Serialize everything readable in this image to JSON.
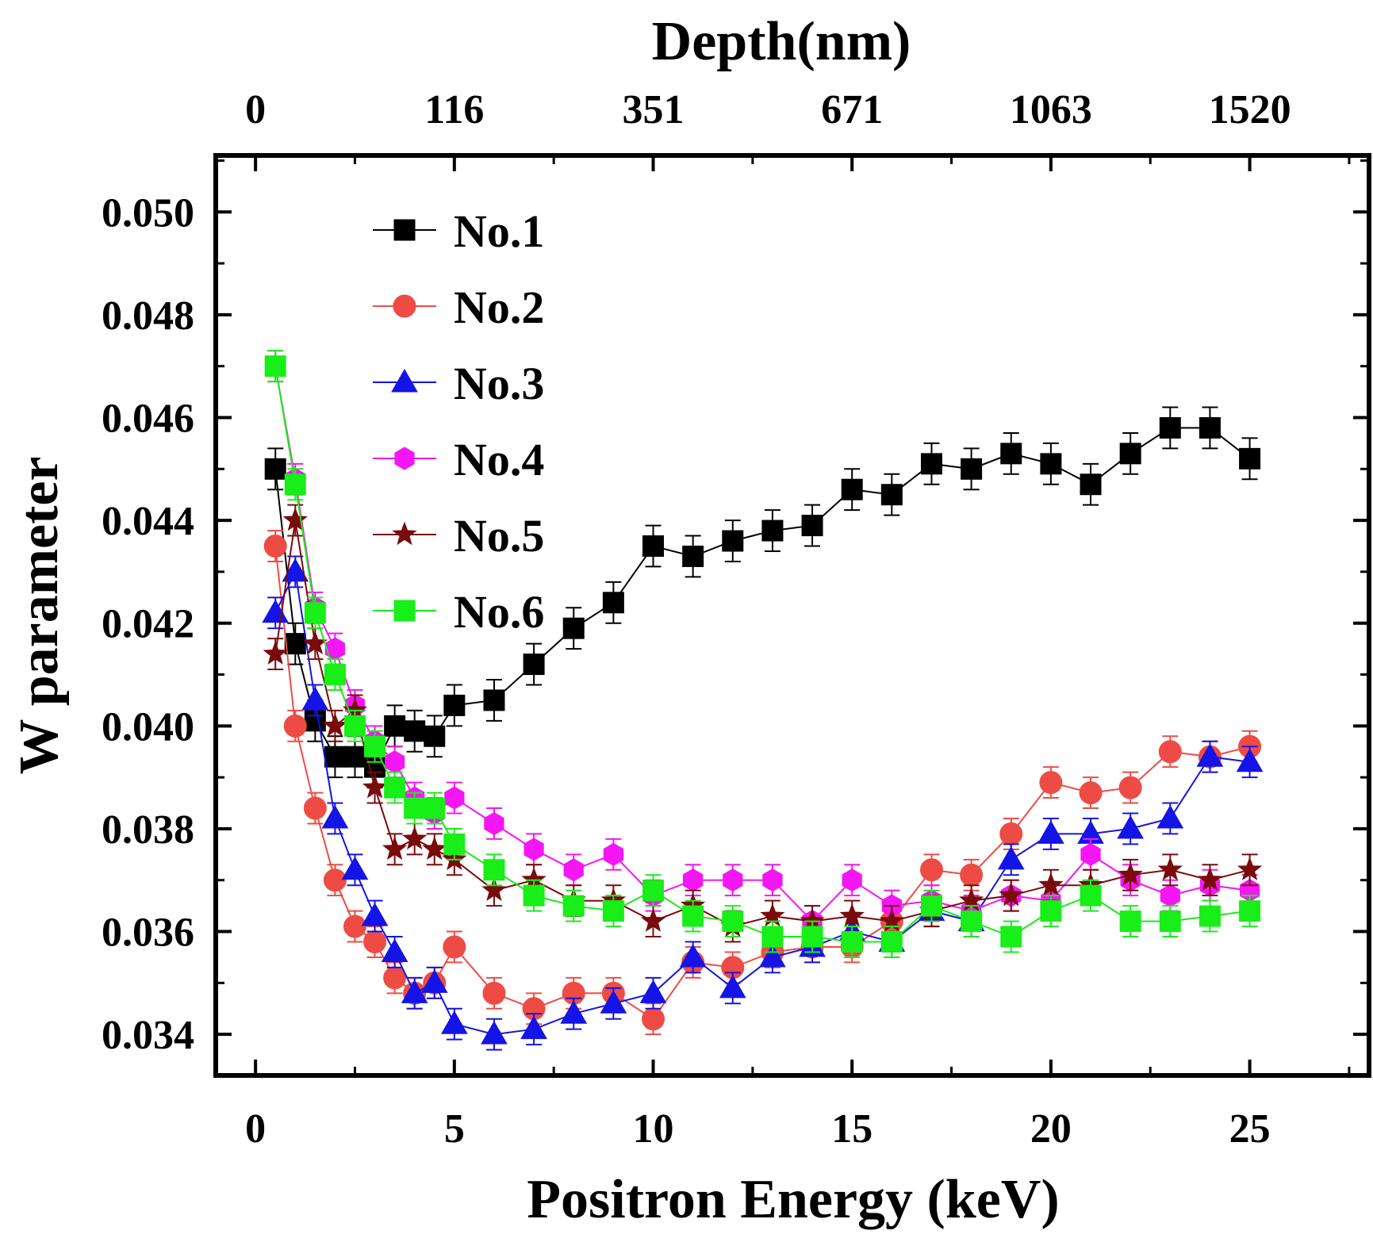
{
  "chart_data": {
    "type": "scatter",
    "title": "",
    "xlabel": "Positron Energy (keV)",
    "ylabel": "W parameter",
    "top_axis_label": "Depth(nm)",
    "xlim": [
      -1,
      28
    ],
    "ylim": [
      0.0332,
      0.0511
    ],
    "x_ticks": [
      0,
      5,
      10,
      15,
      20,
      25
    ],
    "x_tick_labels": [
      "0",
      "5",
      "10",
      "15",
      "20",
      "25"
    ],
    "y_ticks": [
      0.034,
      0.036,
      0.038,
      0.04,
      0.042,
      0.044,
      0.046,
      0.048,
      0.05
    ],
    "y_tick_labels": [
      "0.034",
      "0.036",
      "0.038",
      "0.040",
      "0.042",
      "0.044",
      "0.046",
      "0.048",
      "0.050"
    ],
    "top_ticks": [
      0,
      5,
      10,
      15,
      20,
      25
    ],
    "top_tick_labels": [
      "0",
      "116",
      "351",
      "671",
      "1063",
      "1520"
    ],
    "legend_position": "top-left",
    "grid": false,
    "x": [
      0.5,
      1,
      1.5,
      2,
      2.5,
      3,
      3.5,
      4,
      4.5,
      5,
      6,
      7,
      8,
      9,
      10,
      11,
      12,
      13,
      14,
      15,
      16,
      17,
      18,
      19,
      20,
      21,
      22,
      23,
      24,
      25
    ],
    "series": [
      {
        "name": "No.1",
        "color": "#000000",
        "marker": "square",
        "values": [
          0.045,
          0.0416,
          0.0401,
          0.0394,
          0.0394,
          0.0392,
          0.04,
          0.0399,
          0.0398,
          0.0404,
          0.0405,
          0.0412,
          0.0419,
          0.0424,
          0.0435,
          0.0433,
          0.0436,
          0.0438,
          0.0439,
          0.0446,
          0.0445,
          0.0451,
          0.045,
          0.0453,
          0.0451,
          0.0447,
          0.0453,
          0.0458,
          0.0458,
          0.0452
        ],
        "errors": [
          0.0004,
          0.0004,
          0.0004,
          0.0004,
          0.0004,
          0.0004,
          0.0004,
          0.0004,
          0.0004,
          0.0004,
          0.0004,
          0.0004,
          0.0004,
          0.0004,
          0.0004,
          0.0004,
          0.0004,
          0.0004,
          0.0004,
          0.0004,
          0.0004,
          0.0004,
          0.0004,
          0.0004,
          0.0004,
          0.0004,
          0.0004,
          0.0004,
          0.0004,
          0.0004
        ]
      },
      {
        "name": "No.2",
        "color": "#ef4b45",
        "marker": "circle",
        "values": [
          0.0435,
          0.04,
          0.0384,
          0.037,
          0.0361,
          0.0358,
          0.0351,
          0.0348,
          0.035,
          0.0357,
          0.0348,
          0.0345,
          0.0348,
          0.0348,
          0.0343,
          0.0354,
          0.0353,
          0.0356,
          0.0357,
          0.0357,
          0.0362,
          0.0372,
          0.0371,
          0.0379,
          0.0389,
          0.0387,
          0.0388,
          0.0395,
          0.0394,
          0.0396
        ],
        "errors": [
          0.0003,
          0.0003,
          0.0003,
          0.0003,
          0.0003,
          0.0003,
          0.0003,
          0.0003,
          0.0003,
          0.0003,
          0.0003,
          0.0003,
          0.0003,
          0.0003,
          0.0003,
          0.0003,
          0.0003,
          0.0003,
          0.0003,
          0.0003,
          0.0003,
          0.0003,
          0.0003,
          0.0003,
          0.0003,
          0.0003,
          0.0003,
          0.0003,
          0.0003,
          0.0003
        ]
      },
      {
        "name": "No.3",
        "color": "#1414e6",
        "marker": "triangle",
        "values": [
          0.0422,
          0.043,
          0.0405,
          0.0382,
          0.0372,
          0.0363,
          0.0356,
          0.0348,
          0.035,
          0.0342,
          0.034,
          0.0341,
          0.0344,
          0.0346,
          0.0348,
          0.0355,
          0.0349,
          0.0355,
          0.0357,
          0.036,
          0.0358,
          0.0364,
          0.0362,
          0.0374,
          0.0379,
          0.0379,
          0.038,
          0.0382,
          0.0394,
          0.0393
        ],
        "errors": [
          0.0003,
          0.0003,
          0.0003,
          0.0003,
          0.0003,
          0.0003,
          0.0003,
          0.0003,
          0.0003,
          0.0003,
          0.0003,
          0.0003,
          0.0003,
          0.0003,
          0.0003,
          0.0003,
          0.0003,
          0.0003,
          0.0003,
          0.0003,
          0.0003,
          0.0003,
          0.0003,
          0.0003,
          0.0003,
          0.0003,
          0.0003,
          0.0003,
          0.0003,
          0.0003
        ]
      },
      {
        "name": "No.4",
        "color": "#f516f5",
        "marker": "hexagon",
        "values": [
          0.047,
          0.0448,
          0.0423,
          0.0415,
          0.0404,
          0.0397,
          0.0393,
          0.0386,
          0.0383,
          0.0386,
          0.0381,
          0.0376,
          0.0372,
          0.0375,
          0.0367,
          0.037,
          0.037,
          0.037,
          0.0362,
          0.037,
          0.0365,
          0.0366,
          0.0364,
          0.0367,
          0.0366,
          0.0375,
          0.037,
          0.0367,
          0.0369,
          0.0368
        ],
        "errors": [
          0.0003,
          0.0003,
          0.0003,
          0.0003,
          0.0003,
          0.0003,
          0.0003,
          0.0003,
          0.0003,
          0.0003,
          0.0003,
          0.0003,
          0.0003,
          0.0003,
          0.0003,
          0.0003,
          0.0003,
          0.0003,
          0.0003,
          0.0003,
          0.0003,
          0.0003,
          0.0003,
          0.0003,
          0.0003,
          0.0003,
          0.0003,
          0.0003,
          0.0003,
          0.0003
        ]
      },
      {
        "name": "No.5",
        "color": "#7a0b0b",
        "marker": "star",
        "values": [
          0.0414,
          0.044,
          0.0416,
          0.04,
          0.0403,
          0.0388,
          0.0376,
          0.0378,
          0.0376,
          0.0374,
          0.0368,
          0.037,
          0.0366,
          0.0366,
          0.0362,
          0.0365,
          0.0361,
          0.0363,
          0.0362,
          0.0363,
          0.0362,
          0.0364,
          0.0366,
          0.0367,
          0.0369,
          0.0369,
          0.0371,
          0.0372,
          0.037,
          0.0372
        ],
        "errors": [
          0.0003,
          0.0003,
          0.0003,
          0.0003,
          0.0003,
          0.0003,
          0.0003,
          0.0003,
          0.0003,
          0.0003,
          0.0003,
          0.0003,
          0.0003,
          0.0003,
          0.0003,
          0.0003,
          0.0003,
          0.0003,
          0.0003,
          0.0003,
          0.0003,
          0.0003,
          0.0003,
          0.0003,
          0.0003,
          0.0003,
          0.0003,
          0.0003,
          0.0003,
          0.0003
        ]
      },
      {
        "name": "No.6",
        "color": "#18ee18",
        "marker": "square",
        "values": [
          0.047,
          0.0447,
          0.0422,
          0.041,
          0.04,
          0.0396,
          0.0388,
          0.0384,
          0.0384,
          0.0377,
          0.0372,
          0.0367,
          0.0365,
          0.0364,
          0.0368,
          0.0363,
          0.0362,
          0.0359,
          0.0359,
          0.0358,
          0.0358,
          0.0365,
          0.0362,
          0.0359,
          0.0364,
          0.0367,
          0.0362,
          0.0362,
          0.0363,
          0.0364
        ],
        "errors": [
          0.0003,
          0.0003,
          0.0003,
          0.0003,
          0.0003,
          0.0003,
          0.0003,
          0.0003,
          0.0003,
          0.0003,
          0.0003,
          0.0003,
          0.0003,
          0.0003,
          0.0003,
          0.0003,
          0.0003,
          0.0003,
          0.0003,
          0.0003,
          0.0003,
          0.0003,
          0.0003,
          0.0003,
          0.0003,
          0.0003,
          0.0003,
          0.0003,
          0.0003,
          0.0003
        ]
      }
    ]
  }
}
